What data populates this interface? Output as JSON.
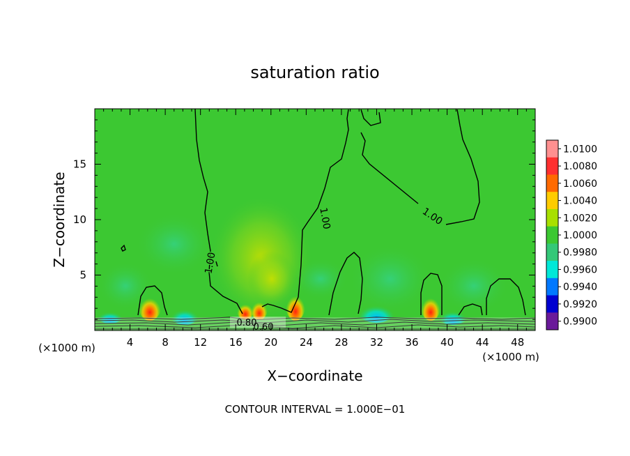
{
  "chart_data": {
    "type": "heatmap",
    "title": "saturation ratio",
    "xlabel": "X−coordinate",
    "ylabel": "Z−coordinate",
    "x_unit_left": "(×1000 m)",
    "x_unit_right": "(×1000 m)",
    "footer": "CONTOUR INTERVAL =  1.000E−01",
    "xlim": [
      0,
      50
    ],
    "ylim": [
      0,
      20
    ],
    "x_ticks": [
      4,
      8,
      12,
      16,
      20,
      24,
      28,
      32,
      36,
      40,
      44,
      48
    ],
    "y_ticks": [
      5,
      10,
      15
    ],
    "colorbar": {
      "levels": [
        "1.0100",
        "1.0080",
        "1.0060",
        "1.0040",
        "1.0020",
        "1.0000",
        "0.9980",
        "0.9960",
        "0.9940",
        "0.9920",
        "0.9900"
      ],
      "colors": [
        "#ff9090",
        "#ff3030",
        "#ff6a00",
        "#ffcc00",
        "#a8e000",
        "#3cc832",
        "#34c878",
        "#00e8d8",
        "#0078ff",
        "#0000d0",
        "#6a1a9a"
      ]
    },
    "contour_labels": [
      "1.00",
      "1.00",
      "1.00",
      "0.80",
      "0.60"
    ],
    "background_color": "#3cc832"
  }
}
